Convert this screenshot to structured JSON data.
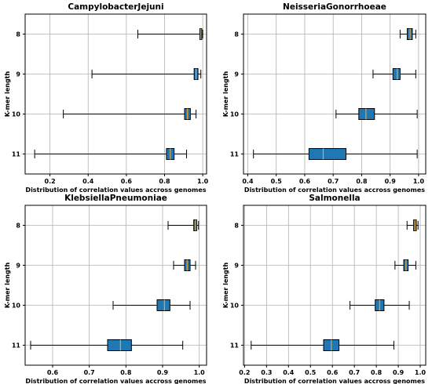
{
  "figure": {
    "ylabel": "K-mer length",
    "xlabel": "Distribution of correlation values accross genomes",
    "box_color": "#1f77b4",
    "median_color": "#e8a33a"
  },
  "chart_data": [
    {
      "type": "boxplot",
      "title": "CampylobacterJejuni",
      "xlabel": "Distribution of correlation values accross genomes",
      "ylabel": "K-mer length",
      "xlim": [
        0.07,
        1.02
      ],
      "xticks": [
        0.2,
        0.4,
        0.6,
        0.8,
        1.0
      ],
      "xtick_labels": [
        "0.2",
        "0.4",
        "0.6",
        "0.8",
        "1.0"
      ],
      "categories": [
        "8",
        "9",
        "10",
        "11"
      ],
      "boxes": [
        {
          "k": "8",
          "whislo": 0.66,
          "q1": 0.985,
          "med": 0.99,
          "q3": 0.995,
          "whishi": 1.0
        },
        {
          "k": "9",
          "whislo": 0.42,
          "q1": 0.955,
          "med": 0.965,
          "q3": 0.975,
          "whishi": 0.99
        },
        {
          "k": "10",
          "whislo": 0.27,
          "q1": 0.905,
          "med": 0.92,
          "q3": 0.935,
          "whishi": 0.965
        },
        {
          "k": "11",
          "whislo": 0.12,
          "q1": 0.81,
          "med": 0.83,
          "q3": 0.85,
          "whishi": 0.915
        }
      ],
      "grid": true
    },
    {
      "type": "boxplot",
      "title": "NeisseriaGonorrhoeae",
      "xlabel": "Distribution of correlation values accross genomes",
      "ylabel": "K-mer length",
      "xlim": [
        0.385,
        1.025
      ],
      "xticks": [
        0.4,
        0.5,
        0.6,
        0.7,
        0.8,
        0.9,
        1.0
      ],
      "xtick_labels": [
        "0.4",
        "0.5",
        "0.6",
        "0.7",
        "0.8",
        "0.9",
        "1.0"
      ],
      "categories": [
        "8",
        "9",
        "10",
        "11"
      ],
      "boxes": [
        {
          "k": "8",
          "whislo": 0.935,
          "q1": 0.96,
          "med": 0.97,
          "q3": 0.978,
          "whishi": 0.99
        },
        {
          "k": "9",
          "whislo": 0.84,
          "q1": 0.91,
          "med": 0.925,
          "q3": 0.935,
          "whishi": 0.99
        },
        {
          "k": "10",
          "whislo": 0.71,
          "q1": 0.79,
          "med": 0.815,
          "q3": 0.845,
          "whishi": 0.995
        },
        {
          "k": "11",
          "whislo": 0.42,
          "q1": 0.615,
          "med": 0.665,
          "q3": 0.745,
          "whishi": 0.995
        }
      ],
      "grid": true
    },
    {
      "type": "boxplot",
      "title": "KlebsiellaPneumoniae",
      "xlabel": "Distribution of correlation values accross genomes",
      "ylabel": "K-mer length",
      "xlim": [
        0.525,
        1.02
      ],
      "xticks": [
        0.6,
        0.7,
        0.8,
        0.9,
        1.0
      ],
      "xtick_labels": [
        "0.6",
        "0.7",
        "0.8",
        "0.9",
        "1.0"
      ],
      "categories": [
        "8",
        "9",
        "10",
        "11"
      ],
      "boxes": [
        {
          "k": "8",
          "whislo": 0.915,
          "q1": 0.985,
          "med": 0.99,
          "q3": 0.993,
          "whishi": 0.998
        },
        {
          "k": "9",
          "whislo": 0.93,
          "q1": 0.96,
          "med": 0.967,
          "q3": 0.975,
          "whishi": 0.99
        },
        {
          "k": "10",
          "whislo": 0.765,
          "q1": 0.885,
          "med": 0.905,
          "q3": 0.92,
          "whishi": 0.975
        },
        {
          "k": "11",
          "whislo": 0.54,
          "q1": 0.75,
          "med": 0.785,
          "q3": 0.815,
          "whishi": 0.955
        }
      ],
      "grid": true
    },
    {
      "type": "boxplot",
      "title": "Salmonella",
      "xlabel": "Distribution of correlation values accross genomes",
      "ylabel": "K-mer length",
      "xlim": [
        0.195,
        1.025
      ],
      "xticks": [
        0.2,
        0.3,
        0.4,
        0.5,
        0.6,
        0.7,
        0.8,
        0.9,
        1.0
      ],
      "xtick_labels": [
        "0.2",
        "0.3",
        "0.4",
        "0.5",
        "0.6",
        "0.7",
        "0.8",
        "0.9",
        "1.0"
      ],
      "categories": [
        "8",
        "9",
        "10",
        "11"
      ],
      "boxes": [
        {
          "k": "8",
          "whislo": 0.94,
          "q1": 0.97,
          "med": 0.976,
          "q3": 0.982,
          "whishi": 0.99
        },
        {
          "k": "9",
          "whislo": 0.885,
          "q1": 0.925,
          "med": 0.935,
          "q3": 0.945,
          "whishi": 0.98
        },
        {
          "k": "10",
          "whislo": 0.68,
          "q1": 0.795,
          "med": 0.815,
          "q3": 0.835,
          "whishi": 0.95
        },
        {
          "k": "11",
          "whislo": 0.23,
          "q1": 0.56,
          "med": 0.595,
          "q3": 0.63,
          "whishi": 0.88
        }
      ],
      "grid": true
    }
  ]
}
